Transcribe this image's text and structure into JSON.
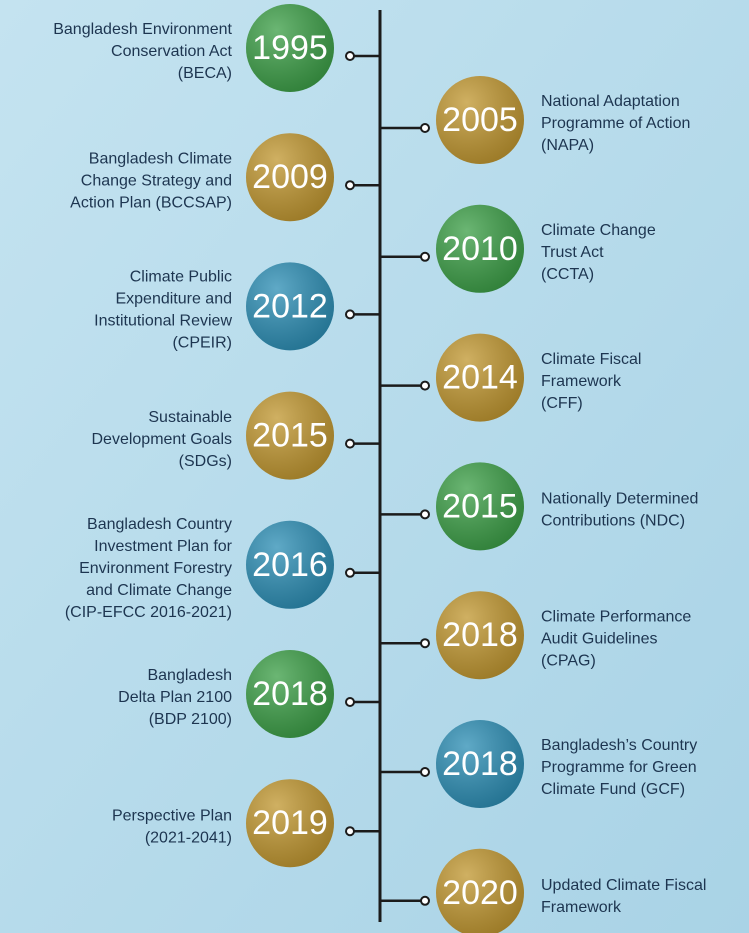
{
  "left": [
    {
      "year": "1995",
      "color": "#3a9e45",
      "lines": [
        "Bangladesh Environment",
        "Conservation Act",
        "(BECA)"
      ]
    },
    {
      "year": "2009",
      "color": "#c0962e",
      "lines": [
        "Bangladesh Climate",
        "Change Strategy and",
        "Action Plan (BCCSAP)"
      ]
    },
    {
      "year": "2012",
      "color": "#2a8db4",
      "lines": [
        "Climate Public",
        "Expenditure and",
        "Institutional Review",
        "(CPEIR)"
      ]
    },
    {
      "year": "2015",
      "color": "#c0962e",
      "lines": [
        "Sustainable",
        "Development Goals",
        "(SDGs)"
      ]
    },
    {
      "year": "2016",
      "color": "#2a8db4",
      "lines": [
        "Bangladesh Country",
        "Investment Plan for",
        "Environment Forestry",
        "and Climate Change",
        "(CIP-EFCC 2016-2021)"
      ]
    },
    {
      "year": "2018",
      "color": "#3a9e45",
      "lines": [
        "Bangladesh",
        "Delta Plan 2100",
        "(BDP 2100)"
      ]
    },
    {
      "year": "2019",
      "color": "#c0962e",
      "lines": [
        "Perspective Plan",
        "(2021-2041)"
      ]
    }
  ],
  "right": [
    {
      "year": "2005",
      "color": "#c0962e",
      "lines": [
        "National Adaptation",
        "Programme of Action",
        "(NAPA)"
      ]
    },
    {
      "year": "2010",
      "color": "#3a9e45",
      "lines": [
        "Climate Change",
        "Trust Act",
        "(CCTA)"
      ]
    },
    {
      "year": "2014",
      "color": "#c0962e",
      "lines": [
        "Climate Fiscal",
        "Framework",
        "(CFF)"
      ]
    },
    {
      "year": "2015",
      "color": "#3a9e45",
      "lines": [
        "Nationally Determined",
        "Contributions (NDC)"
      ]
    },
    {
      "year": "2018",
      "color": "#c0962e",
      "lines": [
        "Climate Performance",
        "Audit Guidelines",
        "(CPAG)"
      ]
    },
    {
      "year": "2018",
      "color": "#2a8db4",
      "lines": [
        "Bangladesh’s Country",
        "Programme for Green",
        "Climate Fund (GCF)"
      ]
    },
    {
      "year": "2020",
      "color": "#c0962e",
      "lines": [
        "Updated Climate Fiscal",
        "Framework"
      ]
    }
  ]
}
